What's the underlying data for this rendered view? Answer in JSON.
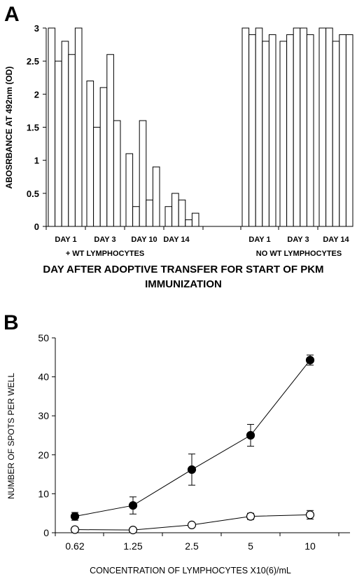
{
  "chart_data": [
    {
      "panel": "A",
      "type": "bar",
      "ylabel": "ABOSRBANCE AT 492nm (OD)",
      "xlabel": "DAY AFTER ADOPTIVE TRANSFER FOR START OF PKM IMMUNIZATION",
      "ylim": [
        0,
        3
      ],
      "yticks": [
        "0",
        "0.5",
        "1",
        "1.5",
        "2",
        "2.5",
        "3"
      ],
      "group_labels": [
        "+ WT LYMPHOCYTES",
        "NO WT LYMPHOCYTES"
      ],
      "categories": [
        {
          "label": "DAY 1",
          "group": 0,
          "values": [
            3.0,
            2.5,
            2.8,
            2.6,
            3.0
          ]
        },
        {
          "label": "DAY 3",
          "group": 0,
          "values": [
            2.2,
            1.5,
            2.1,
            2.6,
            1.6
          ]
        },
        {
          "label": "DAY 10",
          "group": 0,
          "values": [
            1.1,
            0.3,
            1.6,
            0.4,
            0.9
          ]
        },
        {
          "label": "DAY 14",
          "group": 0,
          "values": [
            0.3,
            0.5,
            0.4,
            0.1,
            0.2
          ]
        },
        {
          "label": "DAY 1",
          "group": 1,
          "values": [
            3.0,
            2.9,
            3.0,
            2.8,
            2.9
          ]
        },
        {
          "label": "DAY 3",
          "group": 1,
          "values": [
            2.8,
            2.9,
            3.0,
            3.0,
            2.9
          ]
        },
        {
          "label": "DAY 14",
          "group": 1,
          "values": [
            3.0,
            3.0,
            2.8,
            2.9,
            2.9
          ]
        }
      ]
    },
    {
      "panel": "B",
      "type": "line",
      "ylabel": "NUMBER OF SPOTS PER WELL",
      "xlabel": "CONCENTRATION OF LYMPHOCYTES X10(6)/mL",
      "categories": [
        "0.62",
        "1.25",
        "2.5",
        "5",
        "10"
      ],
      "ylim": [
        0,
        50
      ],
      "yticks": [
        "0",
        "10",
        "20",
        "30",
        "40",
        "50"
      ],
      "series": [
        {
          "marker": "filled",
          "values": [
            4.2,
            7.0,
            16.2,
            25.0,
            44.3
          ],
          "errors": [
            1.0,
            2.2,
            4.0,
            2.8,
            1.3
          ]
        },
        {
          "marker": "open",
          "values": [
            0.8,
            0.7,
            2.0,
            4.2,
            4.6
          ],
          "errors": [
            0.5,
            0.3,
            0.5,
            0.8,
            1.1
          ]
        }
      ]
    }
  ]
}
